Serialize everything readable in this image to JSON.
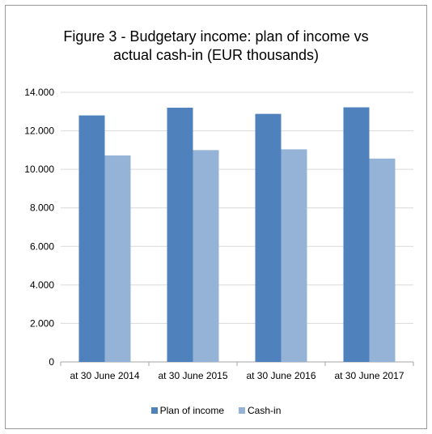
{
  "chart_data": {
    "type": "bar",
    "title_line1": "Figure 3 - Budgetary income: plan of income vs",
    "title_line2": "actual cash-in (EUR thousands)",
    "categories": [
      "at 30 June 2014",
      "at 30 June 2015",
      "at 30 June 2016",
      "at 30 June 2017"
    ],
    "series": [
      {
        "name": "Plan of income",
        "values": [
          12800,
          13200,
          12880,
          13220
        ],
        "color": "#4f81bd"
      },
      {
        "name": "Cash-in",
        "values": [
          10720,
          11000,
          11040,
          10560
        ],
        "color": "#95b3d7"
      }
    ],
    "ylim": [
      0,
      14000
    ],
    "yticks": [
      0,
      2000,
      4000,
      6000,
      8000,
      10000,
      12000,
      14000
    ],
    "ytick_labels": [
      "0",
      "2.000",
      "4.000",
      "6.000",
      "8.000",
      "10.000",
      "12.000",
      "14.000"
    ],
    "grid": true,
    "legend_position": "bottom"
  }
}
